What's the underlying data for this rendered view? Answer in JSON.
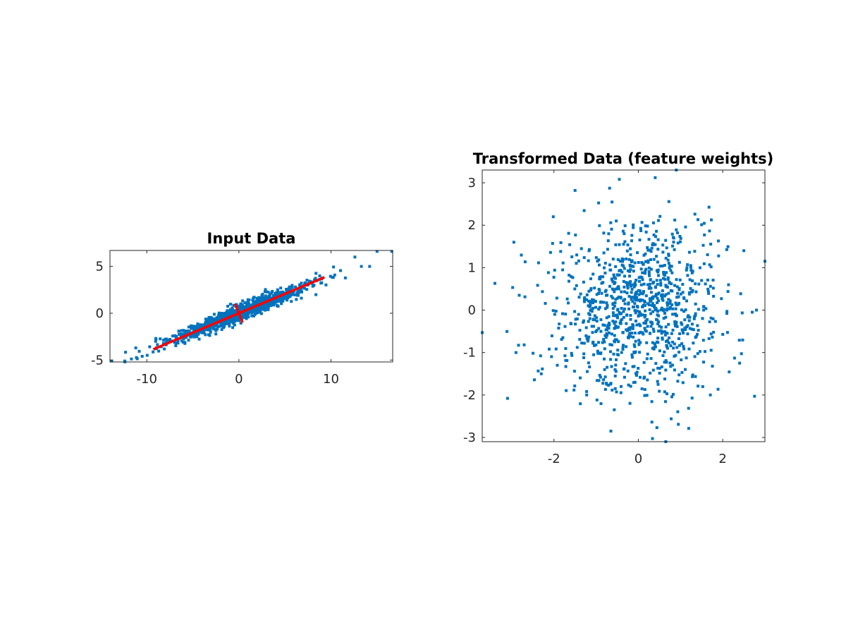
{
  "chart_data": [
    {
      "type": "scatter",
      "title": "Input Data",
      "xlabel": "",
      "ylabel": "",
      "xlim": [
        -14,
        16.7
      ],
      "ylim": [
        -5.2,
        6.7
      ],
      "xticks": [
        -10,
        0,
        10
      ],
      "xtick_labels": [
        "-10",
        "0",
        "10"
      ],
      "yticks": [
        -5,
        0,
        5
      ],
      "ytick_labels": [
        "-5",
        "0",
        "5"
      ],
      "grid": false,
      "point_color": "#0072BD",
      "point_count": 1000,
      "distribution": {
        "kind": "gaussian_rotated",
        "center": [
          0,
          0
        ],
        "major_axis_direction": [
          0.928,
          0.372
        ],
        "major_sd": 4.2,
        "minor_sd": 0.42
      },
      "series": [
        {
          "name": "principal-axis-1",
          "color": "#FF0000",
          "x": [
            -9.3,
            9.3
          ],
          "y": [
            -3.85,
            3.85
          ]
        },
        {
          "name": "principal-axis-2",
          "color": "#FF0000",
          "x": [
            -0.4,
            0.4
          ],
          "y": [
            1.0,
            -1.0
          ]
        }
      ],
      "outliers": [
        [
          15.0,
          6.6
        ],
        [
          16.6,
          6.6
        ],
        [
          12.6,
          6.0
        ],
        [
          13.3,
          5.0
        ],
        [
          14.2,
          5.0
        ],
        [
          -13.8,
          -5.1
        ],
        [
          -12.4,
          -5.1
        ],
        [
          -11.2,
          -3.7
        ],
        [
          -10.5,
          -4.6
        ]
      ]
    },
    {
      "type": "scatter",
      "title": "Transformed Data (feature weights)",
      "xlabel": "",
      "ylabel": "",
      "xlim": [
        -3.7,
        3.0
      ],
      "ylim": [
        -3.1,
        3.3
      ],
      "xticks": [
        -2,
        0,
        2
      ],
      "xtick_labels": [
        "-2",
        "0",
        "2"
      ],
      "yticks": [
        -3,
        -2,
        -1,
        0,
        1,
        2,
        3
      ],
      "ytick_labels": [
        "-3",
        "-2",
        "-1",
        "0",
        "1",
        "2",
        "3"
      ],
      "grid": false,
      "point_color": "#0072BD",
      "point_count": 1000,
      "distribution": {
        "kind": "gaussian_isotropic",
        "center": [
          0,
          0
        ],
        "sd": 1.0
      },
      "outliers": [
        [
          -3.7,
          -0.53
        ],
        [
          -3.4,
          0.63
        ],
        [
          -3.1,
          -2.08
        ],
        [
          -2.95,
          1.6
        ],
        [
          -2.9,
          -1.0
        ],
        [
          -2.3,
          -1.5
        ],
        [
          -1.5,
          2.82
        ],
        [
          -0.45,
          3.08
        ],
        [
          0.4,
          3.12
        ],
        [
          0.9,
          3.3
        ],
        [
          0.65,
          -3.1
        ],
        [
          -0.65,
          -2.85
        ],
        [
          3.0,
          1.15
        ],
        [
          2.8,
          0.0
        ],
        [
          2.7,
          -0.05
        ],
        [
          2.5,
          1.4
        ],
        [
          2.4,
          -1.25
        ]
      ]
    }
  ]
}
